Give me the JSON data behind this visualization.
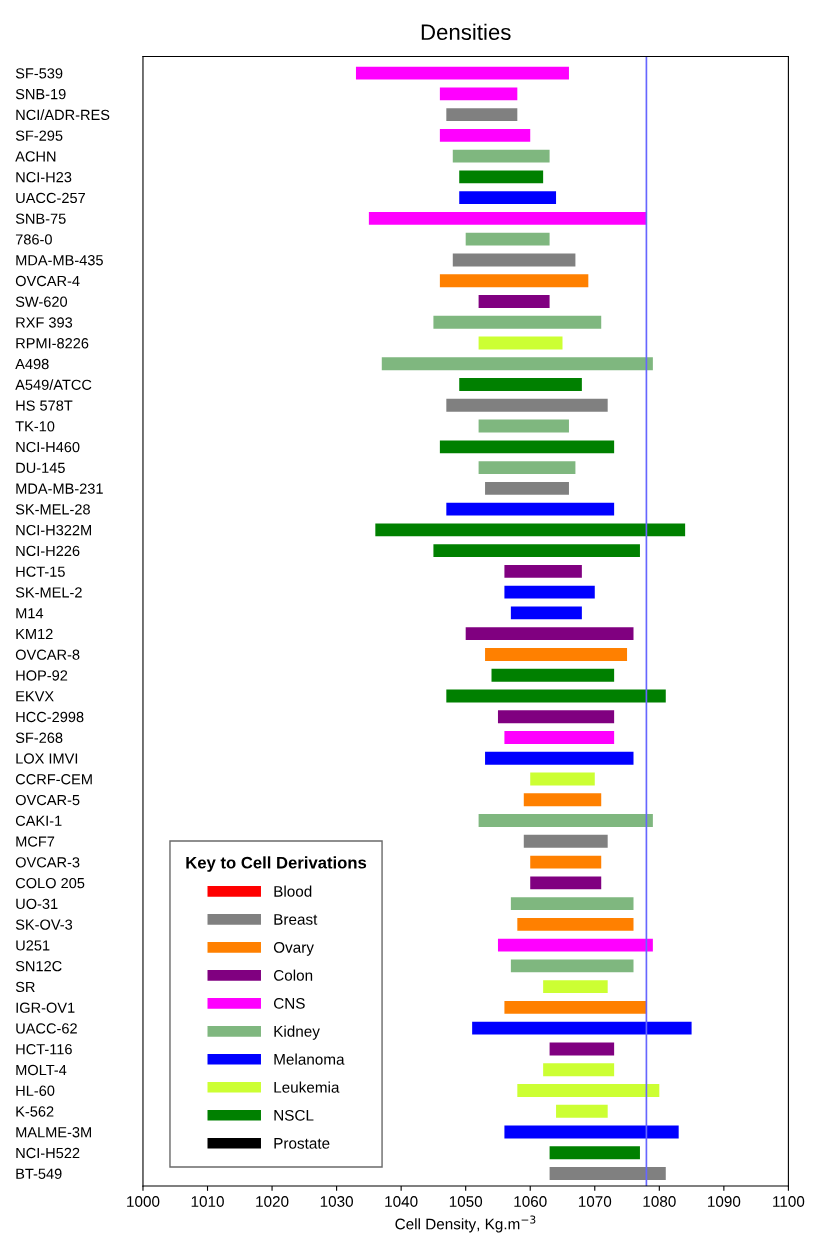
{
  "chart_data": {
    "type": "bar",
    "orientation": "horizontal",
    "title": "Densities",
    "xlabel": "Cell Density, Kg.m$^{−3}$",
    "categories": [
      "SF-539",
      "SNB-19",
      "NCI/ADR-RES",
      "SF-295",
      "ACHN",
      "NCI-H23",
      "UACC-257",
      "SNB-75",
      "786-0",
      "MDA-MB-435",
      "OVCAR-4",
      "SW-620",
      "RXF 393",
      "RPMI-8226",
      "A498",
      "A549/ATCC",
      "HS 578T",
      "TK-10",
      "NCI-H460",
      "DU-145",
      "MDA-MB-231",
      "SK-MEL-28",
      "NCI-H322M",
      "NCI-H226",
      "HCT-15",
      "SK-MEL-2",
      "M14",
      "KM12",
      "OVCAR-8",
      "HOP-92",
      "EKVX",
      "HCC-2998",
      "SF-268",
      "LOX IMVI",
      "CCRF-CEM",
      "OVCAR-5",
      "CAKI-1",
      "MCF7",
      "OVCAR-3",
      "COLO 205",
      "UO-31",
      "SK-OV-3",
      "U251",
      "SN12C",
      "SR",
      "IGR-OV1",
      "UACC-62",
      "HCT-116",
      "MOLT-4",
      "HL-60",
      "K-562",
      "MALME-3M",
      "NCI-H522",
      "BT-549"
    ],
    "xlim": [
      1000,
      1100
    ],
    "xticks": [
      1000,
      1010,
      1020,
      1030,
      1040,
      1050,
      1060,
      1070,
      1080,
      1090,
      1100
    ],
    "grid": false,
    "legend": "bottom left",
    "legend_title": "Key to Cell Derivations",
    "ref_lines": [
      {
        "axis": "x",
        "value": 1078,
        "color": "#6666ff"
      }
    ],
    "series": [
      {
        "name": "Blood",
        "color": "#ff0000",
        "values": [
          null,
          null,
          null,
          null,
          null,
          null,
          null,
          null,
          null,
          null,
          null,
          null,
          null,
          null,
          null,
          null,
          null,
          null,
          null,
          null,
          null,
          null,
          null,
          null,
          null,
          null,
          null,
          null,
          null,
          null,
          null,
          null,
          null,
          null,
          null,
          null,
          null,
          null,
          null,
          null,
          null,
          null,
          null,
          null,
          null,
          null,
          null,
          null,
          null,
          null,
          null,
          null,
          null,
          null
        ],
        "base": [
          null,
          null,
          null,
          null,
          null,
          null,
          null,
          null,
          null,
          null,
          null,
          null,
          null,
          null,
          null,
          null,
          null,
          null,
          null,
          null,
          null,
          null,
          null,
          null,
          null,
          null,
          null,
          null,
          null,
          null,
          null,
          null,
          null,
          null,
          null,
          null,
          null,
          null,
          null,
          null,
          null,
          null,
          null,
          null,
          null,
          null,
          null,
          null,
          null,
          null,
          null,
          null,
          null,
          null
        ]
      },
      {
        "name": "Breast",
        "color": "#808080",
        "values": [
          null,
          null,
          11,
          null,
          null,
          null,
          null,
          null,
          null,
          19,
          null,
          null,
          null,
          null,
          null,
          null,
          25,
          null,
          null,
          null,
          13,
          null,
          null,
          null,
          null,
          null,
          null,
          null,
          null,
          null,
          null,
          null,
          null,
          null,
          null,
          null,
          null,
          13,
          null,
          null,
          null,
          null,
          null,
          null,
          null,
          null,
          null,
          null,
          null,
          null,
          null,
          null,
          null,
          18
        ],
        "base": [
          null,
          null,
          1047,
          null,
          null,
          null,
          null,
          null,
          null,
          1048,
          null,
          null,
          null,
          null,
          null,
          null,
          1047,
          null,
          null,
          null,
          1053,
          null,
          null,
          null,
          null,
          null,
          null,
          null,
          null,
          null,
          null,
          null,
          null,
          null,
          null,
          null,
          null,
          1059,
          null,
          null,
          null,
          null,
          null,
          null,
          null,
          null,
          null,
          null,
          null,
          null,
          null,
          null,
          null,
          1063
        ]
      },
      {
        "name": "Ovary",
        "color": "#ff8000",
        "values": [
          null,
          null,
          null,
          null,
          null,
          null,
          null,
          null,
          null,
          null,
          23,
          null,
          null,
          null,
          null,
          null,
          null,
          null,
          null,
          null,
          null,
          null,
          null,
          null,
          null,
          null,
          null,
          null,
          22,
          null,
          null,
          null,
          null,
          null,
          null,
          12,
          null,
          null,
          11,
          null,
          null,
          18,
          null,
          null,
          null,
          22,
          null,
          null,
          null,
          null,
          null,
          null,
          null,
          null
        ],
        "base": [
          null,
          null,
          null,
          null,
          null,
          null,
          null,
          null,
          null,
          null,
          1046,
          null,
          null,
          null,
          null,
          null,
          null,
          null,
          null,
          null,
          null,
          null,
          null,
          null,
          null,
          null,
          null,
          null,
          1053,
          null,
          null,
          null,
          null,
          null,
          null,
          1059,
          null,
          null,
          1060,
          null,
          null,
          1058,
          null,
          null,
          null,
          1056,
          null,
          null,
          null,
          null,
          null,
          null,
          null,
          null
        ]
      },
      {
        "name": "Colon",
        "color": "#800080",
        "values": [
          null,
          null,
          null,
          null,
          null,
          null,
          null,
          null,
          null,
          null,
          null,
          11,
          null,
          null,
          null,
          null,
          null,
          null,
          null,
          null,
          null,
          null,
          null,
          null,
          12,
          null,
          null,
          26,
          null,
          null,
          null,
          18,
          null,
          null,
          null,
          null,
          null,
          null,
          null,
          11,
          null,
          null,
          null,
          null,
          null,
          null,
          null,
          10,
          null,
          null,
          null,
          null,
          null,
          null
        ],
        "base": [
          null,
          null,
          null,
          null,
          null,
          null,
          null,
          null,
          null,
          null,
          null,
          1052,
          null,
          null,
          null,
          null,
          null,
          null,
          null,
          null,
          null,
          null,
          null,
          null,
          1056,
          null,
          null,
          1050,
          null,
          null,
          null,
          1055,
          null,
          null,
          null,
          null,
          null,
          null,
          null,
          1060,
          null,
          null,
          null,
          null,
          null,
          null,
          null,
          1063,
          null,
          null,
          null,
          null,
          null,
          null
        ]
      },
      {
        "name": "CNS",
        "color": "#ff00ff",
        "values": [
          33,
          12,
          null,
          14,
          null,
          null,
          null,
          43,
          null,
          null,
          null,
          null,
          null,
          null,
          null,
          null,
          null,
          null,
          null,
          null,
          null,
          null,
          null,
          null,
          null,
          null,
          null,
          null,
          null,
          null,
          null,
          null,
          17,
          null,
          null,
          null,
          null,
          null,
          null,
          null,
          null,
          null,
          24,
          null,
          null,
          null,
          null,
          null,
          null,
          null,
          null,
          null,
          null,
          null
        ],
        "base": [
          1033,
          1046,
          null,
          1046,
          null,
          null,
          null,
          1035,
          null,
          null,
          null,
          null,
          null,
          null,
          null,
          null,
          null,
          null,
          null,
          null,
          null,
          null,
          null,
          null,
          null,
          null,
          null,
          null,
          null,
          null,
          null,
          null,
          1056,
          null,
          null,
          null,
          null,
          null,
          null,
          null,
          null,
          null,
          1055,
          null,
          null,
          null,
          null,
          null,
          null,
          null,
          null,
          null,
          null,
          null
        ]
      },
      {
        "name": "Kidney",
        "color": "#7fb77f",
        "values": [
          null,
          null,
          null,
          null,
          15,
          null,
          null,
          null,
          13,
          null,
          null,
          null,
          26,
          null,
          42,
          null,
          null,
          14,
          null,
          15,
          null,
          null,
          null,
          null,
          null,
          null,
          null,
          null,
          null,
          null,
          null,
          null,
          null,
          null,
          null,
          null,
          27,
          null,
          null,
          null,
          19,
          null,
          null,
          19,
          null,
          null,
          null,
          null,
          null,
          null,
          null,
          null,
          null,
          null
        ],
        "base": [
          null,
          null,
          null,
          null,
          1048,
          null,
          null,
          null,
          1050,
          null,
          null,
          null,
          1045,
          null,
          1037,
          null,
          null,
          1052,
          null,
          1052,
          null,
          null,
          null,
          null,
          null,
          null,
          null,
          null,
          null,
          null,
          null,
          null,
          null,
          null,
          null,
          null,
          1052,
          null,
          null,
          null,
          1057,
          null,
          null,
          1057,
          null,
          null,
          null,
          null,
          null,
          null,
          null,
          null,
          null,
          null
        ]
      },
      {
        "name": "Melanoma",
        "color": "#0000ff",
        "values": [
          null,
          null,
          null,
          null,
          null,
          null,
          15,
          null,
          null,
          null,
          null,
          null,
          null,
          null,
          null,
          null,
          null,
          null,
          null,
          null,
          null,
          26,
          null,
          null,
          null,
          14,
          11,
          null,
          null,
          null,
          null,
          null,
          null,
          23,
          null,
          null,
          null,
          null,
          null,
          null,
          null,
          null,
          null,
          null,
          null,
          null,
          34,
          null,
          null,
          null,
          null,
          27,
          null,
          null
        ],
        "base": [
          null,
          null,
          null,
          null,
          null,
          null,
          1049,
          null,
          null,
          null,
          null,
          null,
          null,
          null,
          null,
          null,
          null,
          null,
          null,
          null,
          null,
          1047,
          null,
          null,
          null,
          1056,
          1057,
          null,
          null,
          null,
          null,
          null,
          null,
          1053,
          null,
          null,
          null,
          null,
          null,
          null,
          null,
          null,
          null,
          null,
          null,
          null,
          1051,
          null,
          null,
          null,
          null,
          1056,
          null,
          null
        ]
      },
      {
        "name": "Leukemia",
        "color": "#ccff33",
        "values": [
          null,
          null,
          null,
          null,
          null,
          null,
          null,
          null,
          null,
          null,
          null,
          null,
          null,
          13,
          null,
          null,
          null,
          null,
          null,
          null,
          null,
          null,
          null,
          null,
          null,
          null,
          null,
          null,
          null,
          null,
          null,
          null,
          null,
          null,
          10,
          null,
          null,
          null,
          null,
          null,
          null,
          null,
          null,
          null,
          10,
          null,
          null,
          null,
          11,
          22,
          8,
          null,
          null,
          null
        ],
        "base": [
          null,
          null,
          null,
          null,
          null,
          null,
          null,
          null,
          null,
          null,
          null,
          null,
          null,
          1052,
          null,
          null,
          null,
          null,
          null,
          null,
          null,
          null,
          null,
          null,
          null,
          null,
          null,
          null,
          null,
          null,
          null,
          null,
          null,
          null,
          1060,
          null,
          null,
          null,
          null,
          null,
          null,
          null,
          null,
          null,
          1062,
          null,
          null,
          null,
          1062,
          1058,
          1064,
          null,
          null,
          null
        ]
      },
      {
        "name": "NSCL",
        "color": "#008000",
        "values": [
          null,
          null,
          null,
          null,
          null,
          13,
          null,
          null,
          null,
          null,
          null,
          null,
          null,
          null,
          null,
          19,
          null,
          null,
          27,
          null,
          null,
          null,
          48,
          32,
          null,
          null,
          null,
          null,
          null,
          19,
          34,
          null,
          null,
          null,
          null,
          null,
          null,
          null,
          null,
          null,
          null,
          null,
          null,
          null,
          null,
          null,
          null,
          null,
          null,
          null,
          null,
          null,
          14,
          null
        ],
        "base": [
          null,
          null,
          null,
          null,
          null,
          1049,
          null,
          null,
          null,
          null,
          null,
          null,
          null,
          null,
          null,
          1049,
          null,
          null,
          1046,
          null,
          null,
          null,
          1036,
          1045,
          null,
          null,
          null,
          null,
          null,
          1054,
          1047,
          null,
          null,
          null,
          null,
          null,
          null,
          null,
          null,
          null,
          null,
          null,
          null,
          null,
          null,
          null,
          null,
          null,
          null,
          null,
          null,
          null,
          1063,
          null
        ]
      },
      {
        "name": "Prostate",
        "color": "#000000",
        "values": [
          null,
          null,
          null,
          null,
          null,
          null,
          null,
          null,
          null,
          null,
          null,
          null,
          null,
          null,
          null,
          null,
          null,
          null,
          null,
          null,
          null,
          null,
          null,
          null,
          null,
          null,
          null,
          null,
          null,
          null,
          null,
          null,
          null,
          null,
          null,
          null,
          null,
          null,
          null,
          null,
          null,
          null,
          null,
          null,
          null,
          null,
          null,
          null,
          null,
          null,
          null,
          null,
          null,
          null
        ],
        "base": [
          null,
          null,
          null,
          null,
          null,
          null,
          null,
          null,
          null,
          null,
          null,
          null,
          null,
          null,
          null,
          null,
          null,
          null,
          null,
          null,
          null,
          null,
          null,
          null,
          null,
          null,
          null,
          null,
          null,
          null,
          null,
          null,
          null,
          null,
          null,
          null,
          null,
          null,
          null,
          null,
          null,
          null,
          null,
          null,
          null,
          null,
          null,
          null,
          null,
          null,
          null,
          null,
          null,
          null
        ]
      }
    ]
  }
}
